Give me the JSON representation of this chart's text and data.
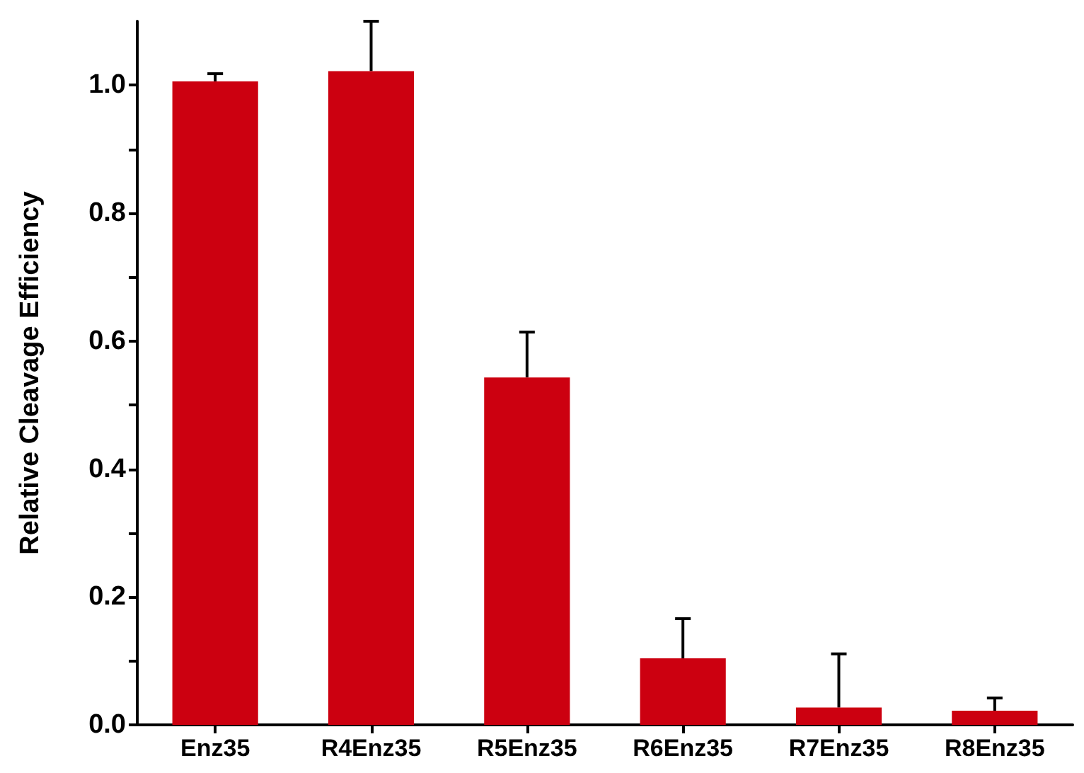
{
  "chart_data": {
    "type": "bar",
    "ylabel": "Relative Cleavage Efficiency",
    "categories": [
      "Enz35",
      "R4Enz35",
      "R5Enz35",
      "R6Enz35",
      "R7Enz35",
      "R8Enz35"
    ],
    "values": [
      1.006,
      1.022,
      0.543,
      0.104,
      0.027,
      0.022
    ],
    "errors": [
      0.012,
      0.078,
      0.071,
      0.062,
      0.084,
      0.02
    ],
    "color": "#cc0010",
    "ylim": [
      0,
      1.1
    ],
    "yticks": [
      {
        "value": 0,
        "label": "0.0"
      },
      {
        "value": 0.1,
        "label": null
      },
      {
        "value": 0.2,
        "label": "0.2"
      },
      {
        "value": 0.3,
        "label": null
      },
      {
        "value": 0.4,
        "label": "0.4"
      },
      {
        "value": 0.5,
        "label": null
      },
      {
        "value": 0.6,
        "label": "0.6"
      },
      {
        "value": 0.7,
        "label": null
      },
      {
        "value": 0.8,
        "label": "0.8"
      },
      {
        "value": 0.9,
        "label": null
      },
      {
        "value": 1.0,
        "label": "1.0"
      }
    ],
    "grid": false
  }
}
